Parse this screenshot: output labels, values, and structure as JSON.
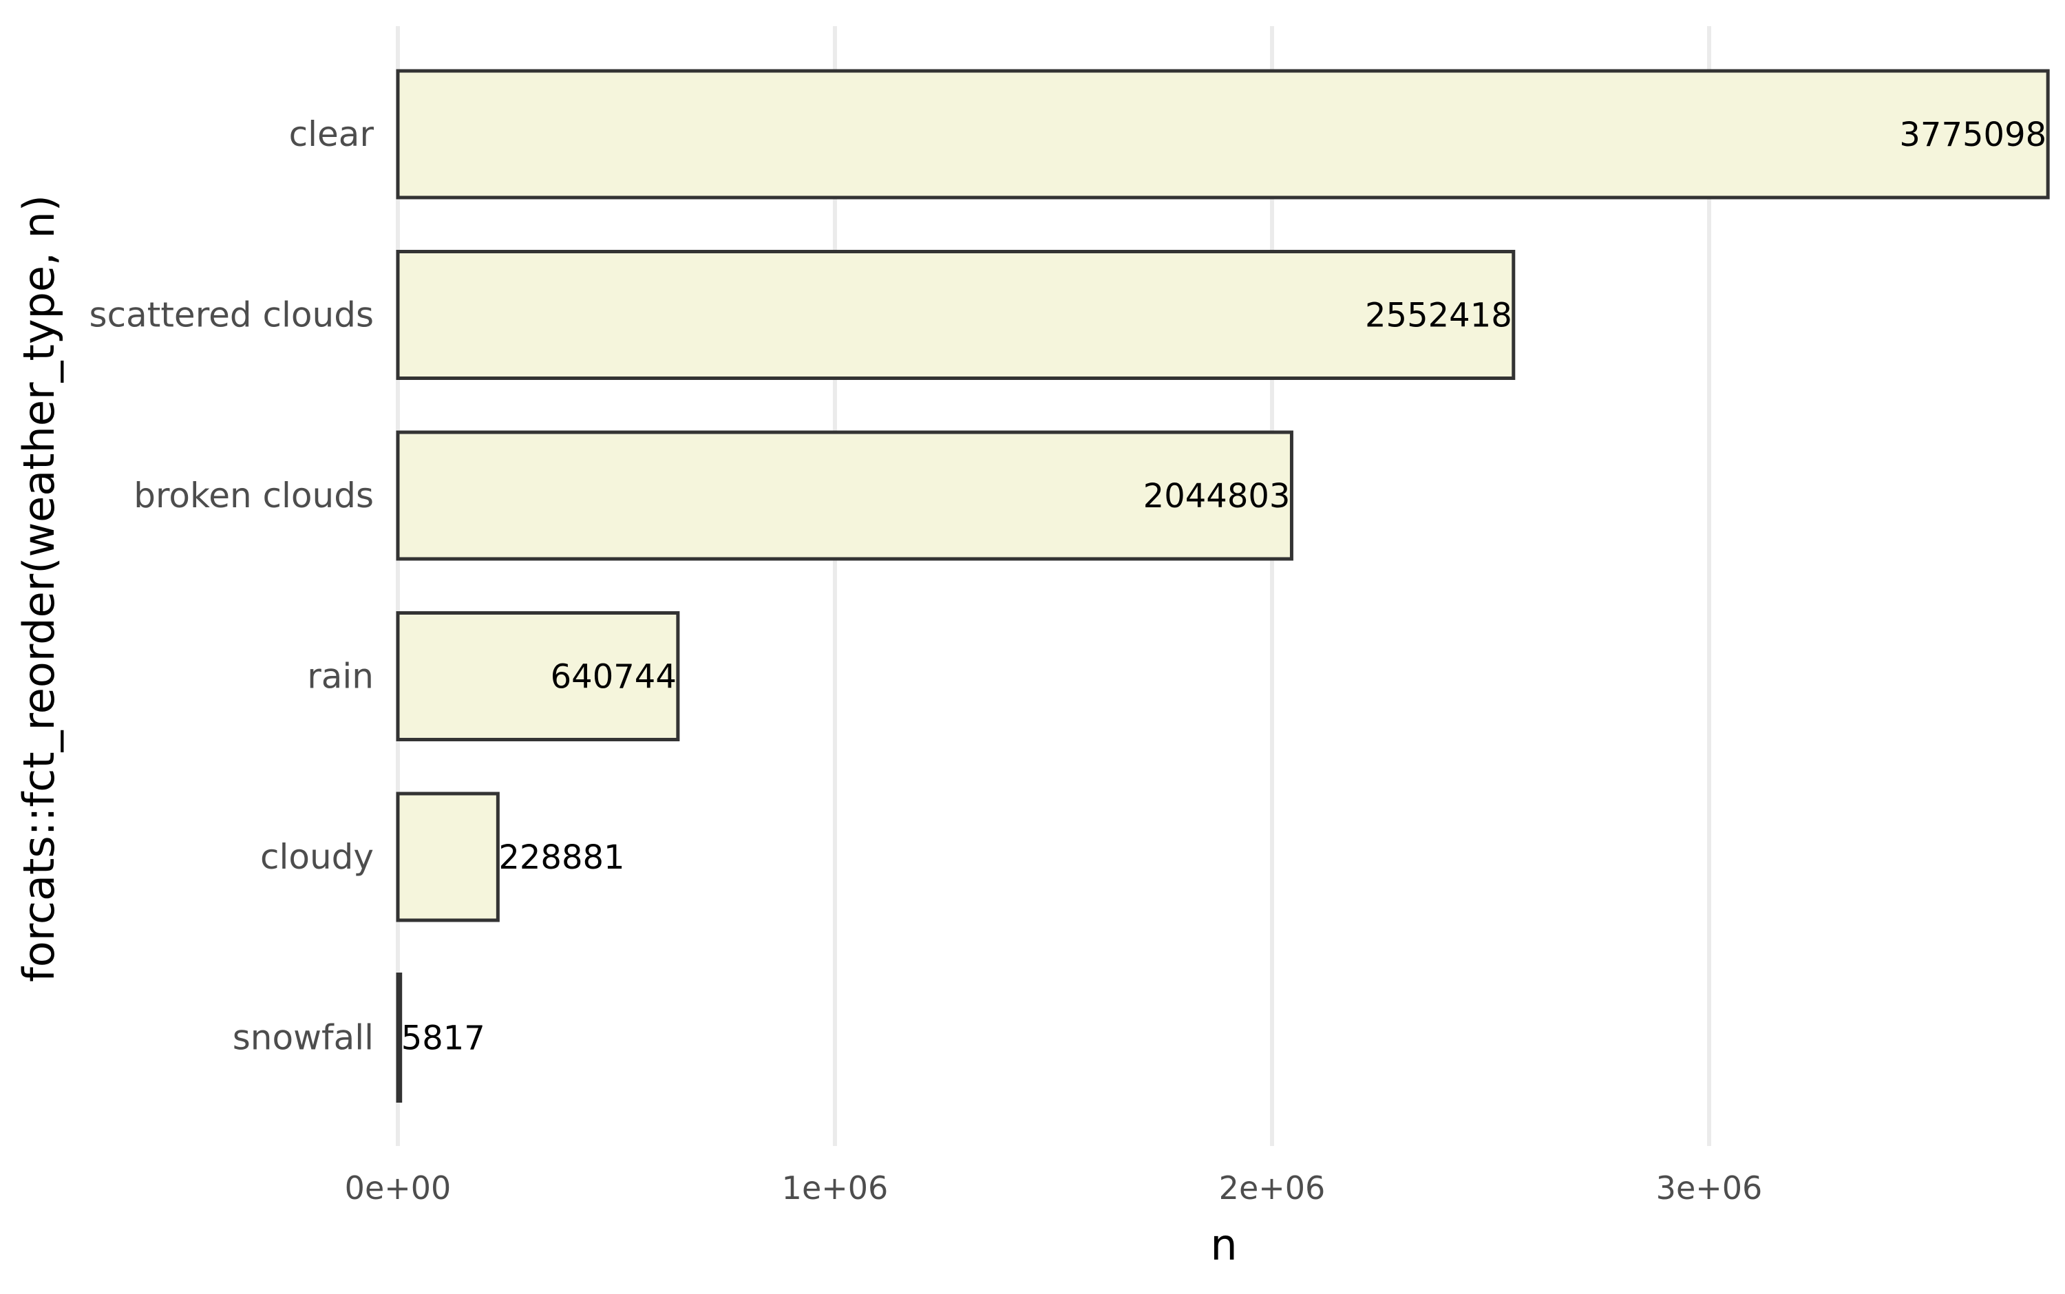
{
  "chart_data": {
    "type": "bar",
    "orientation": "horizontal",
    "categories": [
      "clear",
      "scattered clouds",
      "broken clouds",
      "rain",
      "cloudy",
      "snowfall"
    ],
    "values": [
      3775098,
      2552418,
      2044803,
      640744,
      228881,
      5817
    ],
    "data_labels": [
      "3775098",
      "2552418",
      "2044803",
      "640744",
      "228881",
      "5817"
    ],
    "xlabel": "n",
    "ylabel": "forcats::fct_reorder(weather_type, n)",
    "xlim": [
      0,
      3775098
    ],
    "x_ticks": [
      0,
      1000000,
      2000000,
      3000000
    ],
    "x_tick_labels": [
      "0e+00",
      "1e+06",
      "2e+06",
      "3e+06"
    ],
    "grid": true,
    "legend": "none",
    "colors": {
      "bar_fill": "#f5f5dc",
      "bar_stroke": "#333333",
      "grid": "#ebebeb"
    }
  }
}
